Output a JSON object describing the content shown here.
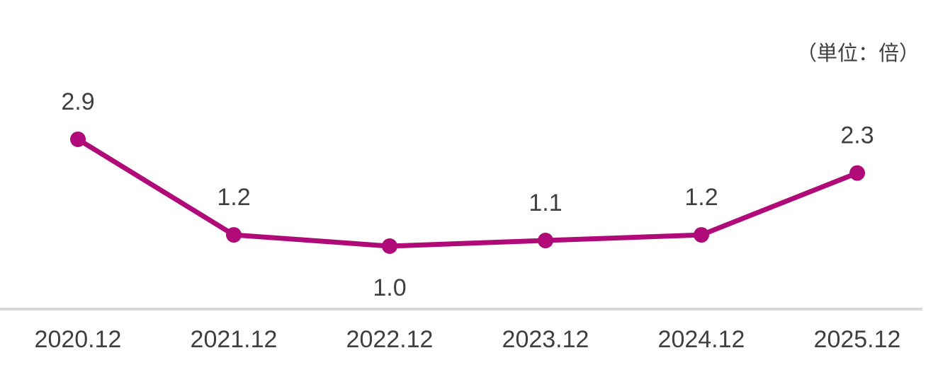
{
  "chart": {
    "unit_label": "（単位：倍）"
  },
  "chart_data": {
    "type": "line",
    "title": "",
    "unit": "（単位：倍）",
    "categories": [
      "2020.12",
      "2021.12",
      "2022.12",
      "2023.12",
      "2024.12",
      "2025.12"
    ],
    "series": [
      {
        "name": "ratio",
        "values": [
          2.9,
          1.2,
          1.0,
          1.1,
          1.2,
          2.3
        ],
        "labels": [
          "2.9",
          "1.2",
          "1.0",
          "1.1",
          "1.2",
          "2.3"
        ],
        "label_positions": [
          "above",
          "above",
          "below",
          "above",
          "above",
          "above"
        ],
        "color": "#B00A78"
      }
    ],
    "xlabel": "",
    "ylabel": "",
    "ylim": [
      0.8,
      3.2
    ],
    "grid": false,
    "legend": "none",
    "axis_line_color": "#D9D9D9",
    "text_color": "#3F3F3F",
    "marker": "circle"
  }
}
